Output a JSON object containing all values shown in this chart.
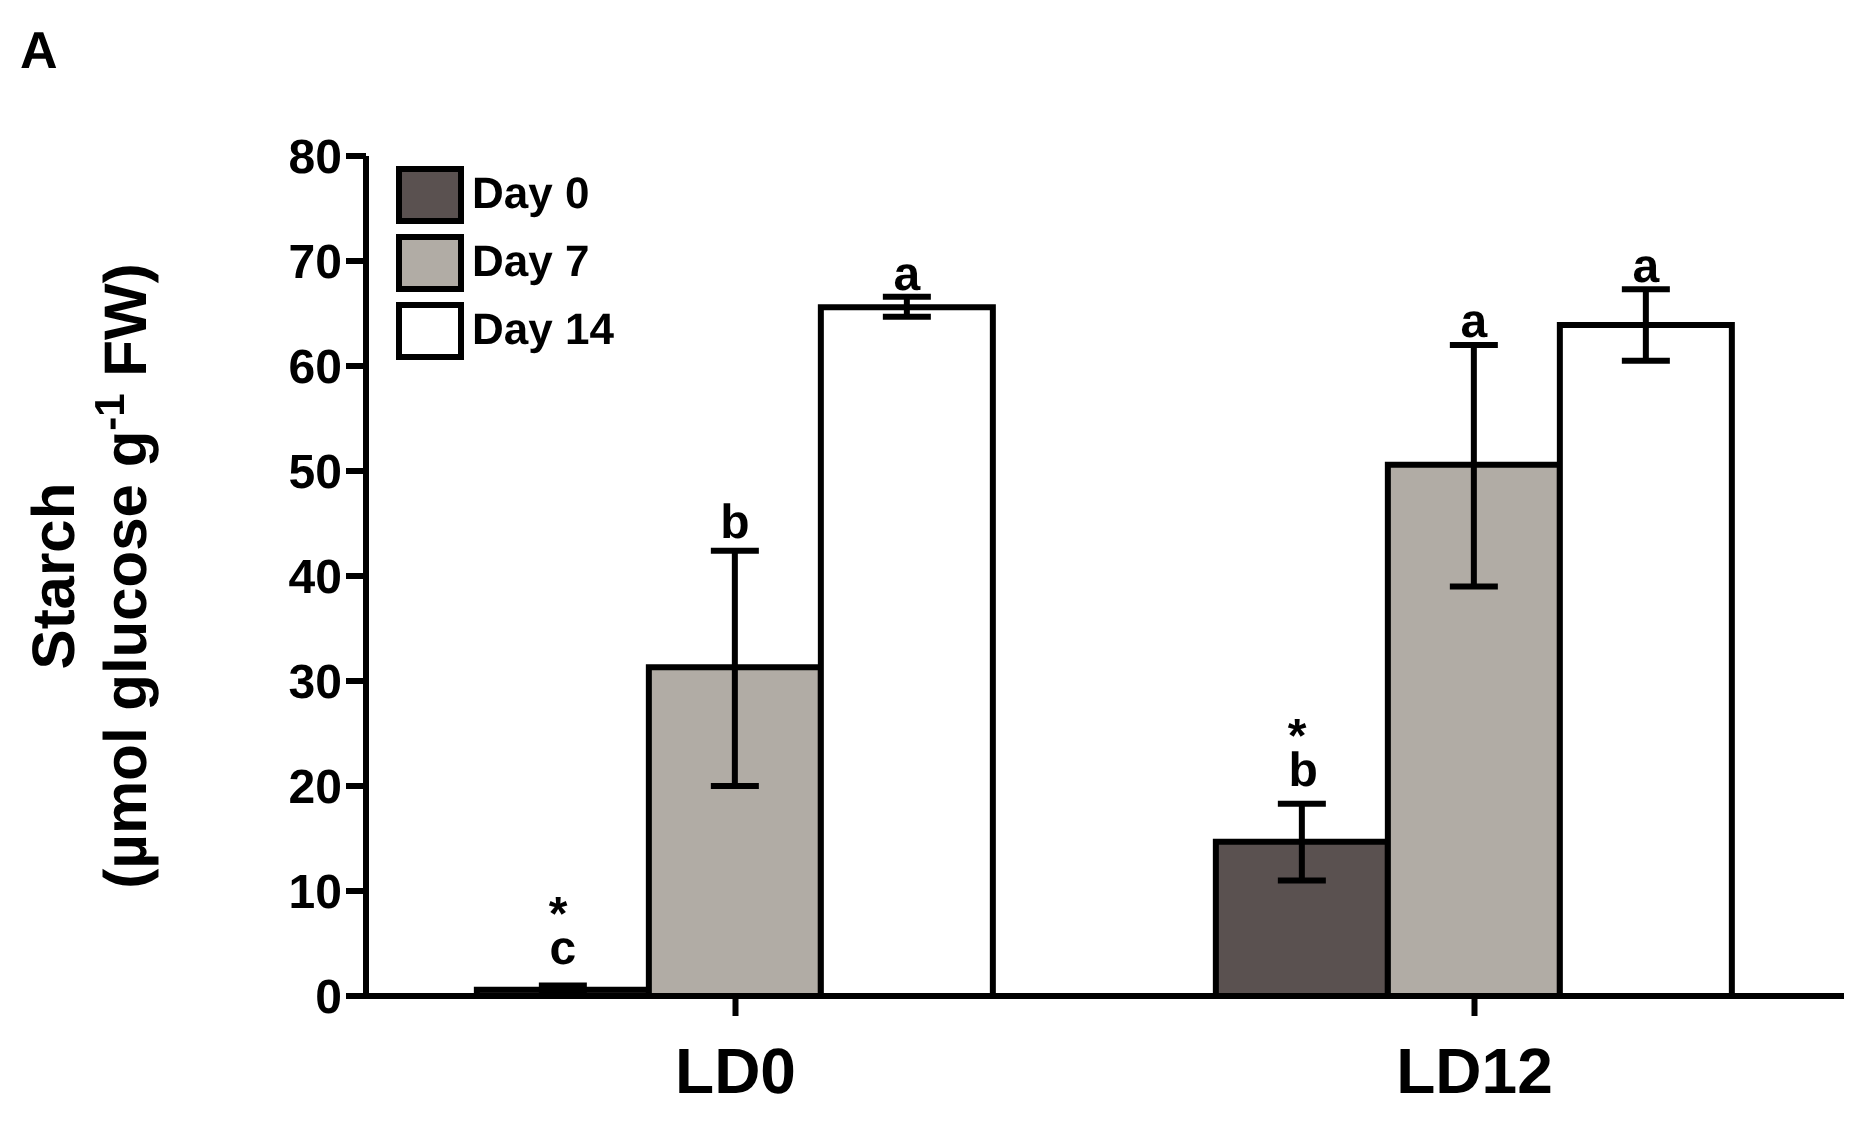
{
  "chart_data": {
    "type": "bar",
    "annotations": [
      "A"
    ],
    "ylabel": "Starch\n(µmol glucose g$^{-1}$ FW)",
    "categories": [
      "LD0",
      "LD12"
    ],
    "series": [
      {
        "name": "Day 0",
        "color": "#5a5150",
        "values": [
          0.6,
          14.7
        ],
        "errors": [
          [
            0.2,
            1.0
          ],
          [
            11.0,
            18.3
          ]
        ],
        "value_labels": [
          "*c",
          "*b"
        ]
      },
      {
        "name": "Day 7",
        "color": "#b1aca5",
        "values": [
          31.3,
          50.6
        ],
        "errors": [
          [
            20.0,
            42.4
          ],
          [
            39.0,
            62.0
          ]
        ],
        "value_labels": [
          "b",
          "a"
        ]
      },
      {
        "name": "Day 14",
        "color": "#ffffff",
        "values": [
          65.6,
          63.9
        ],
        "errors": [
          [
            64.7,
            66.6
          ],
          [
            60.5,
            67.3
          ]
        ],
        "value_labels": [
          "a",
          "a"
        ]
      }
    ],
    "ylim": [
      0,
      80
    ],
    "yticks": [
      0,
      10,
      20,
      30,
      40,
      50,
      60,
      70,
      80
    ],
    "grid": false,
    "legend": "top left"
  }
}
